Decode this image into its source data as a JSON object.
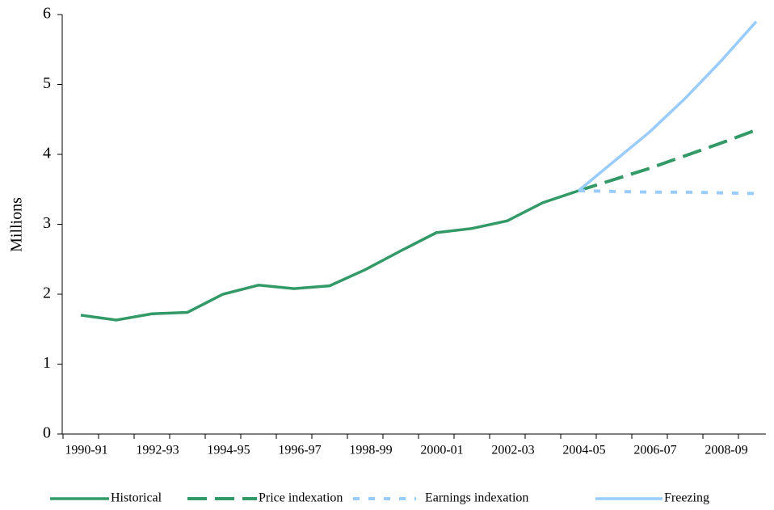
{
  "chart_data": {
    "type": "line",
    "y_label": "Millions",
    "categories": [
      "1990-91",
      null,
      "1992-93",
      null,
      "1994-95",
      null,
      "1996-97",
      null,
      "1998-99",
      null,
      "2000-01",
      null,
      "2002-03",
      null,
      "2004-05",
      null,
      "2006-07",
      null,
      "2008-09",
      null
    ],
    "series": [
      {
        "name": "Historical",
        "color": "#339966",
        "dash": "solid",
        "values": [
          1.7,
          1.63,
          1.72,
          1.74,
          2.0,
          2.13,
          2.08,
          2.12,
          2.35,
          2.62,
          2.88,
          2.94,
          3.05,
          3.31,
          3.48,
          null,
          null,
          null,
          null,
          null
        ]
      },
      {
        "name": "Price indexation",
        "color": "#339966",
        "dash": "dashed",
        "values": [
          null,
          null,
          null,
          null,
          null,
          null,
          null,
          null,
          null,
          null,
          null,
          null,
          null,
          null,
          3.48,
          3.64,
          3.8,
          3.98,
          4.16,
          4.35
        ]
      },
      {
        "name": "Earnings indexation",
        "color": "#99ccff",
        "dash": "dotted",
        "values": [
          null,
          null,
          null,
          null,
          null,
          null,
          null,
          null,
          null,
          null,
          null,
          null,
          null,
          null,
          3.48,
          3.47,
          3.46,
          3.46,
          3.45,
          3.44
        ]
      },
      {
        "name": "Freezing",
        "color": "#99ccff",
        "dash": "solid",
        "values": [
          null,
          null,
          null,
          null,
          null,
          null,
          null,
          null,
          null,
          null,
          null,
          null,
          null,
          null,
          3.48,
          3.9,
          4.32,
          4.8,
          5.33,
          5.9
        ]
      }
    ],
    "ylim": [
      0,
      6
    ],
    "yticks": [
      0,
      1,
      2,
      3,
      4,
      5,
      6
    ],
    "grid": false,
    "legend": "bottom"
  }
}
